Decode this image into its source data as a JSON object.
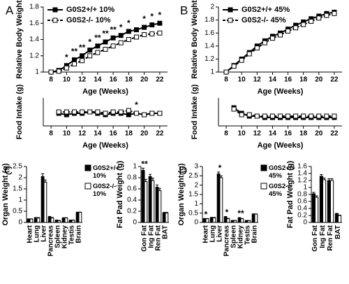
{
  "chart_data": [
    {
      "type": "line",
      "panel": "A",
      "ylabel": "Relative Body Weight",
      "xlabel": "Age (Weeks)",
      "legend": "upper left",
      "x": [
        8,
        9,
        10,
        11,
        12,
        13,
        14,
        15,
        16,
        17,
        18,
        19,
        20,
        21,
        22
      ],
      "xlim": [
        7,
        23
      ],
      "xticks": [
        8,
        10,
        12,
        14,
        16,
        18,
        20,
        22
      ],
      "ylim": [
        1,
        1.8
      ],
      "yticks": [
        1,
        1.2,
        1.4,
        1.6,
        1.8
      ],
      "series": [
        {
          "name": "G0S2+/+ 10%",
          "color": "#000000",
          "marker": "filled",
          "dashed": false,
          "values": [
            1.0,
            1.02,
            1.08,
            1.15,
            1.2,
            1.27,
            1.32,
            1.37,
            1.42,
            1.45,
            1.5,
            1.52,
            1.55,
            1.58,
            1.6
          ]
        },
        {
          "name": "G0S2-/- 10%",
          "color": "#000000",
          "marker": "open",
          "dashed": true,
          "values": [
            1.0,
            1.01,
            1.05,
            1.1,
            1.14,
            1.2,
            1.24,
            1.28,
            1.32,
            1.36,
            1.4,
            1.43,
            1.46,
            1.47,
            1.48
          ]
        }
      ],
      "significance": [
        null,
        null,
        "*",
        "**",
        "**",
        "*",
        "**",
        "**",
        "**",
        "*",
        "*",
        null,
        "*",
        "*",
        "*"
      ]
    },
    {
      "type": "line",
      "ylabel": "Food Intake (g)",
      "xlabel": "Age (Weeks)",
      "x": [
        9,
        10,
        11,
        12,
        13,
        14,
        15,
        16,
        17,
        18,
        19,
        20,
        21,
        22
      ],
      "xlim": [
        7,
        23
      ],
      "xticks": [
        8,
        10,
        12,
        14,
        16,
        18,
        20,
        22
      ],
      "ylim": [
        15,
        35
      ],
      "series": [
        {
          "color": "#000000",
          "marker": "filled",
          "dashed": false,
          "values": [
            24,
            23,
            24,
            24,
            25,
            24,
            23,
            24,
            24,
            23,
            24,
            23,
            24,
            24
          ]
        },
        {
          "color": "#000000",
          "marker": "open",
          "dashed": true,
          "values": [
            25,
            25,
            25,
            25,
            25,
            25,
            24,
            25,
            25,
            26,
            24,
            23,
            24,
            24
          ]
        }
      ],
      "significance": [
        null,
        null,
        null,
        null,
        null,
        null,
        null,
        null,
        null,
        null,
        "*",
        null,
        null,
        null
      ]
    },
    {
      "type": "line",
      "panel": "B",
      "ylabel": "Relative Body Weight",
      "xlabel": "Age (Weeks)",
      "legend": "upper left",
      "x": [
        8,
        9,
        10,
        11,
        12,
        13,
        14,
        15,
        16,
        17,
        18,
        19,
        20,
        21,
        22
      ],
      "xlim": [
        7,
        23
      ],
      "xticks": [
        8,
        10,
        12,
        14,
        16,
        18,
        20,
        22
      ],
      "ylim": [
        1,
        2
      ],
      "yticks": [
        1,
        1.2,
        1.4,
        1.6,
        1.8,
        2
      ],
      "series": [
        {
          "name": "G0S2+/+ 45%",
          "color": "#000000",
          "marker": "filled",
          "dashed": false,
          "values": [
            1.0,
            1.1,
            1.2,
            1.3,
            1.4,
            1.48,
            1.55,
            1.6,
            1.66,
            1.72,
            1.77,
            1.82,
            1.86,
            1.9,
            1.92
          ]
        },
        {
          "name": "G0S2-/- 45%",
          "color": "#000000",
          "marker": "open",
          "dashed": true,
          "values": [
            1.0,
            1.09,
            1.18,
            1.28,
            1.37,
            1.45,
            1.52,
            1.57,
            1.63,
            1.68,
            1.73,
            1.78,
            1.83,
            1.87,
            1.9
          ]
        }
      ]
    },
    {
      "type": "line",
      "ylabel": "Food Intake (g)",
      "xlabel": "Age (Weeks)",
      "x": [
        9,
        10,
        11,
        12,
        13,
        14,
        15,
        16,
        17,
        18,
        19,
        20,
        21,
        22
      ],
      "xlim": [
        7,
        23
      ],
      "xticks": [
        8,
        10,
        12,
        14,
        16,
        18,
        20,
        22
      ],
      "ylim": [
        15,
        35
      ],
      "series": [
        {
          "color": "#000000",
          "marker": "filled",
          "dashed": false,
          "values": [
            28,
            24,
            22,
            22,
            21,
            21,
            21,
            21,
            21,
            21,
            21,
            21,
            21,
            21
          ]
        },
        {
          "color": "#000000",
          "marker": "open",
          "dashed": true,
          "values": [
            27,
            23,
            23,
            22,
            22,
            22,
            22,
            22,
            22,
            22,
            22,
            22,
            22,
            22
          ]
        }
      ]
    },
    {
      "type": "bar",
      "panel": "C",
      "ylabel": "Organ Weight (g)",
      "legend": "right",
      "categories": [
        "Heart",
        "Lung",
        "Liver",
        "Pancreas",
        "Spleen",
        "Kidney",
        "Testis",
        "Brain"
      ],
      "ylim": [
        0,
        2.5
      ],
      "yticks": [
        0,
        0.5,
        1,
        1.5,
        2,
        2.5
      ],
      "series": [
        {
          "name": "G0S2+/+ 10%",
          "color": "#000000",
          "values": [
            0.15,
            0.2,
            2.05,
            0.25,
            0.1,
            0.2,
            0.1,
            0.45
          ],
          "errors": [
            0.01,
            0.02,
            0.12,
            0.02,
            0.01,
            0.01,
            0.01,
            0.01
          ]
        },
        {
          "name": "G0S2-/- 10%",
          "color": "#ffffff",
          "values": [
            0.15,
            0.2,
            1.8,
            0.2,
            0.08,
            0.2,
            0.1,
            0.45
          ],
          "errors": [
            0.01,
            0.02,
            0.1,
            0.02,
            0.01,
            0.01,
            0.01,
            0.01
          ]
        }
      ]
    },
    {
      "type": "bar",
      "ylabel": "Fat Pad Weight (g)",
      "categories": [
        "Gon Fat",
        "Ing Fat",
        "Ren Fat",
        "BAT"
      ],
      "ylim": [
        0,
        1
      ],
      "yticks": [
        0,
        0.2,
        0.4,
        0.6,
        0.8,
        1
      ],
      "series": [
        {
          "color": "#000000",
          "values": [
            0.93,
            0.82,
            0.63,
            0.17
          ],
          "errors": [
            0.04,
            0.04,
            0.04,
            0.01
          ]
        },
        {
          "color": "#ffffff",
          "values": [
            0.73,
            0.75,
            0.57,
            0.17
          ],
          "errors": [
            0.04,
            0.04,
            0.04,
            0.01
          ]
        }
      ],
      "significance": [
        "**",
        null,
        null,
        null
      ]
    },
    {
      "type": "bar",
      "panel": "D",
      "ylabel": "Organ Weight (g)",
      "legend": "right",
      "categories": [
        "Heart",
        "Lung",
        "Liver",
        "Pancreas",
        "Spleen",
        "Kidney",
        "Testis",
        "Brain"
      ],
      "ylim": [
        0,
        3
      ],
      "yticks": [
        0,
        0.5,
        1,
        1.5,
        2,
        2.5,
        3
      ],
      "series": [
        {
          "name": "G0S2+/+ 45%",
          "color": "#000000",
          "values": [
            0.2,
            0.25,
            2.6,
            0.3,
            0.1,
            0.25,
            0.1,
            0.45
          ],
          "errors": [
            0.01,
            0.02,
            0.1,
            0.02,
            0.01,
            0.01,
            0.01,
            0.01
          ]
        },
        {
          "name": "G0S2-/- 45%",
          "color": "#ffffff",
          "values": [
            0.2,
            0.25,
            2.4,
            0.2,
            0.1,
            0.2,
            0.1,
            0.45
          ],
          "errors": [
            0.01,
            0.02,
            0.1,
            0.02,
            0.01,
            0.01,
            0.01,
            0.01
          ]
        }
      ],
      "significance": [
        "*",
        null,
        "*",
        "*",
        null,
        "**",
        null,
        null
      ]
    },
    {
      "type": "bar",
      "ylabel": "Fat Pad Weight (g)",
      "categories": [
        "Gon Fat",
        "Ing Fat",
        "Ren Fat",
        "BAT"
      ],
      "ylim": [
        0,
        1.6
      ],
      "yticks": [
        0,
        0.2,
        0.4,
        0.6,
        0.8,
        1,
        1.2,
        1.4,
        1.6
      ],
      "series": [
        {
          "color": "#000000",
          "values": [
            0.82,
            1.32,
            1.2,
            0.25
          ],
          "errors": [
            0.04,
            0.05,
            0.05,
            0.01
          ]
        },
        {
          "color": "#ffffff",
          "values": [
            0.72,
            1.22,
            1.2,
            0.2
          ],
          "errors": [
            0.04,
            0.05,
            0.05,
            0.01
          ]
        }
      ]
    }
  ]
}
